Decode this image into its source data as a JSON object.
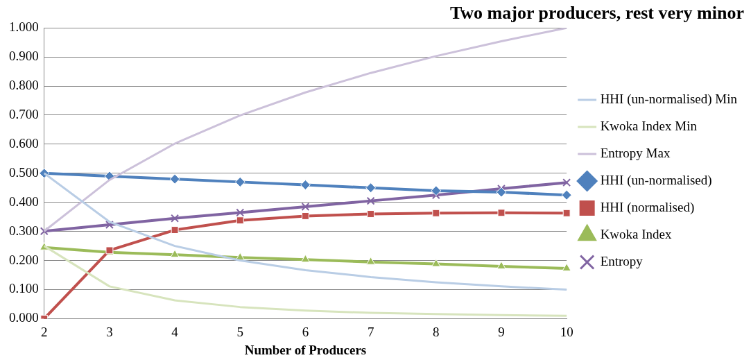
{
  "chart_data": {
    "type": "line",
    "title": "Two major producers, rest very minor",
    "xlabel": "Number of Producers",
    "categories": [
      "2",
      "3",
      "4",
      "5",
      "6",
      "7",
      "8",
      "9",
      "10"
    ],
    "ylim": [
      0,
      1
    ],
    "yticks": [
      {
        "value": 0,
        "label": "0.000"
      },
      {
        "value": 0.1,
        "label": "0.100"
      },
      {
        "value": 0.2,
        "label": "0.200"
      },
      {
        "value": 0.3,
        "label": "0.300"
      },
      {
        "value": 0.4,
        "label": "0.400"
      },
      {
        "value": 0.5,
        "label": "0.500"
      },
      {
        "value": 0.6,
        "label": "0.600"
      },
      {
        "value": 0.7,
        "label": "0.700"
      },
      {
        "value": 0.8,
        "label": "0.800"
      },
      {
        "value": 0.9,
        "label": "0.900"
      },
      {
        "value": 1,
        "label": "1.000"
      }
    ],
    "grid": "y",
    "legend": "right",
    "line_style": "solid",
    "series": [
      {
        "name": "HHI (un-normalised) Min",
        "color": "#b9cde5",
        "marker": "none",
        "values": [
          0.5,
          0.333,
          0.25,
          0.2,
          0.167,
          0.143,
          0.125,
          0.111,
          0.1
        ]
      },
      {
        "name": "Kwoka Index Min",
        "color": "#d7e4bd",
        "marker": "none",
        "values": [
          0.25,
          0.111,
          0.063,
          0.04,
          0.028,
          0.02,
          0.016,
          0.012,
          0.01
        ]
      },
      {
        "name": "Entropy Max",
        "color": "#ccc1da",
        "marker": "none",
        "values": [
          0.301,
          0.477,
          0.602,
          0.699,
          0.778,
          0.845,
          0.903,
          0.954,
          1.0
        ]
      },
      {
        "name": "HHI (un-normalised)",
        "color": "#4f81bd",
        "marker": "diamond",
        "values": [
          0.5,
          0.49,
          0.48,
          0.47,
          0.46,
          0.45,
          0.44,
          0.435,
          0.425
        ]
      },
      {
        "name": "HHI (normalised)",
        "color": "#c0504d",
        "marker": "square",
        "values": [
          0,
          0.235,
          0.305,
          0.338,
          0.353,
          0.36,
          0.363,
          0.364,
          0.363
        ]
      },
      {
        "name": "Kwoka Index",
        "color": "#9bbb59",
        "marker": "triangle",
        "values": [
          0.245,
          0.228,
          0.22,
          0.21,
          0.203,
          0.195,
          0.188,
          0.18,
          0.173
        ]
      },
      {
        "name": "Entropy",
        "color": "#8064a2",
        "marker": "cross",
        "values": [
          0.301,
          0.323,
          0.345,
          0.365,
          0.385,
          0.405,
          0.425,
          0.447,
          0.468
        ]
      }
    ]
  }
}
